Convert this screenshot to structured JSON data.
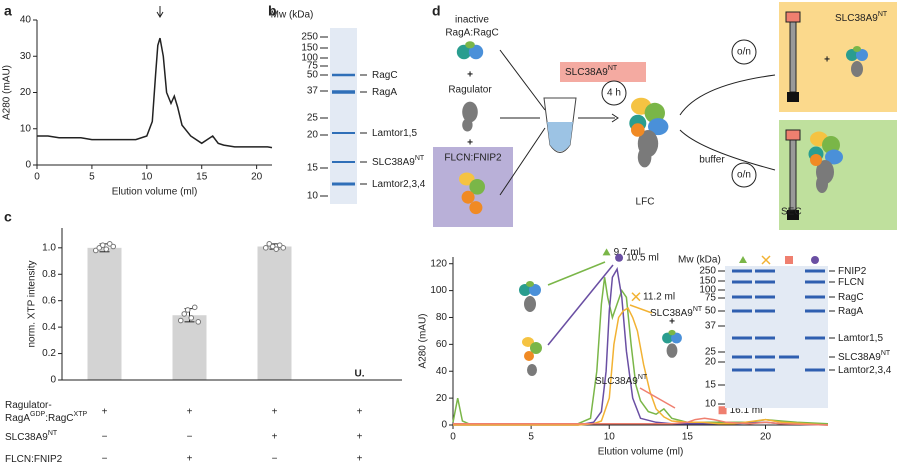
{
  "panel_labels": [
    "a",
    "b",
    "c",
    "d"
  ],
  "chart_data": [
    {
      "type": "line",
      "x_label": "Elution volume (ml)",
      "y_label": "A280 (mAU)",
      "xlim": [
        0,
        21.4
      ],
      "ylim": [
        0,
        40
      ],
      "xticks": [
        0,
        5,
        10,
        15,
        20
      ],
      "yticks": [
        0,
        10,
        20,
        30,
        40
      ],
      "series": [
        {
          "color": "#222222",
          "x": [
            0,
            1,
            2,
            3,
            4,
            5,
            6,
            7,
            8,
            9,
            10,
            10.5,
            10.8,
            11,
            11.2,
            11.5,
            11.8,
            12.2,
            12.5,
            12.8,
            13.2,
            14,
            15,
            15.5,
            16,
            16.5,
            17,
            18,
            19,
            20,
            21,
            21.4
          ],
          "values": [
            8,
            8,
            7.5,
            7.5,
            7.5,
            7,
            7,
            7,
            7,
            7,
            8,
            12,
            25,
            33,
            35,
            30,
            20,
            17,
            19,
            16,
            11,
            8,
            6,
            7,
            8,
            6,
            5.5,
            5,
            5,
            5,
            5,
            4.8
          ]
        }
      ]
    },
    {
      "type": "bar",
      "y_label": "norm. XTP intensity",
      "ylim": [
        0,
        1.15
      ],
      "yticks": [
        0,
        0.2,
        0.4,
        0.6,
        0.8,
        {
          "value": 1,
          "label": "1.0"
        }
      ],
      "categories": [
        null,
        null,
        null,
        null
      ],
      "color": "#d3d3d3",
      "values": [
        1.0,
        0.49,
        1.01,
        null
      ],
      "errors": [
        0.03,
        0.05,
        0.02,
        null
      ],
      "replicates": [
        [
          0.98,
          1.0,
          1.02,
          0.99,
          1.03,
          1.01
        ],
        [
          0.45,
          0.5,
          0.53,
          0.47,
          0.55,
          0.44
        ],
        [
          1.0,
          1.03,
          1.01,
          0.99,
          1.02,
          1.0
        ],
        []
      ],
      "annotation": "U.",
      "conditions": [
        {
          "label": [
            [
              {
                "text": "Ragulator-"
              }
            ],
            [
              {
                "text": "RagA"
              },
              {
                "sup": "GDP"
              },
              {
                "text": ":RagC"
              },
              {
                "sup": "XTP"
              }
            ]
          ],
          "cells": [
            "+",
            "+",
            "+",
            "+"
          ]
        },
        {
          "label": [
            [
              {
                "text": "SLC38A9"
              },
              {
                "sup": "NT"
              }
            ]
          ],
          "cells": [
            "−",
            "−",
            "+",
            "+"
          ]
        },
        {
          "label": [
            [
              {
                "text": "FLCN:FNIP2"
              }
            ]
          ],
          "cells": [
            "−",
            "+",
            "−",
            "+"
          ]
        }
      ]
    },
    {
      "type": "line",
      "x_label": "Elution volume (ml)",
      "y_label": "A280 (mAU)",
      "xlim": [
        0,
        24
      ],
      "ylim": [
        0,
        125
      ],
      "xticks": [
        0,
        5,
        10,
        15,
        20
      ],
      "yticks": [
        0,
        20,
        40,
        60,
        80,
        100,
        120
      ],
      "series": [
        {
          "color": "#7ab648",
          "x": [
            0,
            0.3,
            0.6,
            1,
            3,
            6,
            8,
            8.8,
            9.2,
            9.5,
            9.7,
            9.9,
            10.2,
            10.5,
            10.8,
            11.1,
            11.4,
            11.7,
            12,
            12.5,
            13,
            13.5,
            14,
            15,
            16,
            17,
            18,
            19,
            20,
            21,
            22,
            24
          ],
          "values": [
            2,
            20,
            3,
            1,
            1,
            1,
            1,
            5,
            40,
            90,
            110,
            95,
            80,
            90,
            100,
            95,
            60,
            30,
            18,
            10,
            8,
            12,
            5,
            2,
            2,
            2,
            2,
            2,
            4,
            3,
            2,
            1
          ]
        },
        {
          "color": "#6a4fa3",
          "x": [
            0,
            8,
            9,
            9.5,
            9.8,
            10,
            10.2,
            10.5,
            10.8,
            11.1,
            11.5,
            12,
            13,
            14,
            16,
            18,
            20,
            21,
            24
          ],
          "values": [
            0,
            0,
            2,
            10,
            40,
            85,
            110,
            116,
            95,
            55,
            20,
            5,
            2,
            1,
            1,
            1,
            2,
            1,
            0
          ]
        },
        {
          "color": "#f2b233",
          "x": [
            0,
            8,
            9,
            9.5,
            10,
            10.3,
            10.6,
            10.9,
            11.2,
            11.5,
            11.8,
            12.2,
            12.6,
            13,
            13.5,
            14,
            15,
            16,
            17,
            18,
            20,
            21,
            24
          ],
          "values": [
            0,
            0,
            1,
            3,
            20,
            60,
            80,
            85,
            87,
            80,
            70,
            45,
            25,
            12,
            6,
            3,
            2,
            2,
            1,
            1,
            4,
            2,
            0
          ]
        },
        {
          "color": "#ef7f6f",
          "x": [
            0,
            10,
            14,
            15,
            15.5,
            16.1,
            16.7,
            17.5,
            19,
            20,
            21,
            24
          ],
          "values": [
            1,
            1,
            1,
            2,
            4,
            5,
            4,
            2,
            1,
            2,
            1,
            0
          ]
        }
      ],
      "annotations": [
        "9.7 ml",
        "10.5 ml",
        "11.2 ml",
        "16.1 ml"
      ],
      "peak_labels": [
        {
          "text": "SLC38A9",
          "sup": "NT"
        },
        {
          "text": "SLC38A9",
          "sup": "NT"
        }
      ]
    }
  ],
  "gel_b": {
    "mw_title": "Mw (kDa)",
    "markers": [
      250,
      150,
      100,
      75,
      50,
      37,
      25,
      20,
      15,
      10
    ],
    "bands": [
      {
        "text": "RagC"
      },
      {
        "text": "RagA"
      },
      {
        "text": "Lamtor1,5"
      },
      {
        "text": "SLC38A9",
        "sup": "NT"
      },
      {
        "text": "Lamtor2,3,4"
      }
    ]
  },
  "gel_d": {
    "mw_title": "Mw (kDa)",
    "markers": [
      250,
      150,
      100,
      75,
      50,
      37,
      25,
      20,
      15,
      10
    ],
    "bands": [
      {
        "text": "FNIP2"
      },
      {
        "text": "FLCN"
      },
      {
        "text": "RagC"
      },
      {
        "text": "RagA"
      },
      {
        "text": "Lamtor1,5"
      },
      {
        "text": "SLC38A9",
        "sup": "NT"
      },
      {
        "text": "Lamtor2,3,4"
      }
    ]
  },
  "diagram_d": {
    "inactive": "inactive",
    "raga_ragc": "RagA:RagC",
    "ragulator": "Ragulator",
    "flcn_fnip2": "FLCN:FNIP2",
    "time": "4 h",
    "lfc": "LFC",
    "slc": {
      "text": "SLC38A9",
      "sup": "NT"
    },
    "slc_product": {
      "text": "SLC38A9",
      "sup": "NT"
    },
    "overnight": [
      "o/n",
      "o/n"
    ],
    "buffer": "buffer",
    "sec": "SEC",
    "plus": [
      "+",
      "+",
      "+"
    ]
  }
}
